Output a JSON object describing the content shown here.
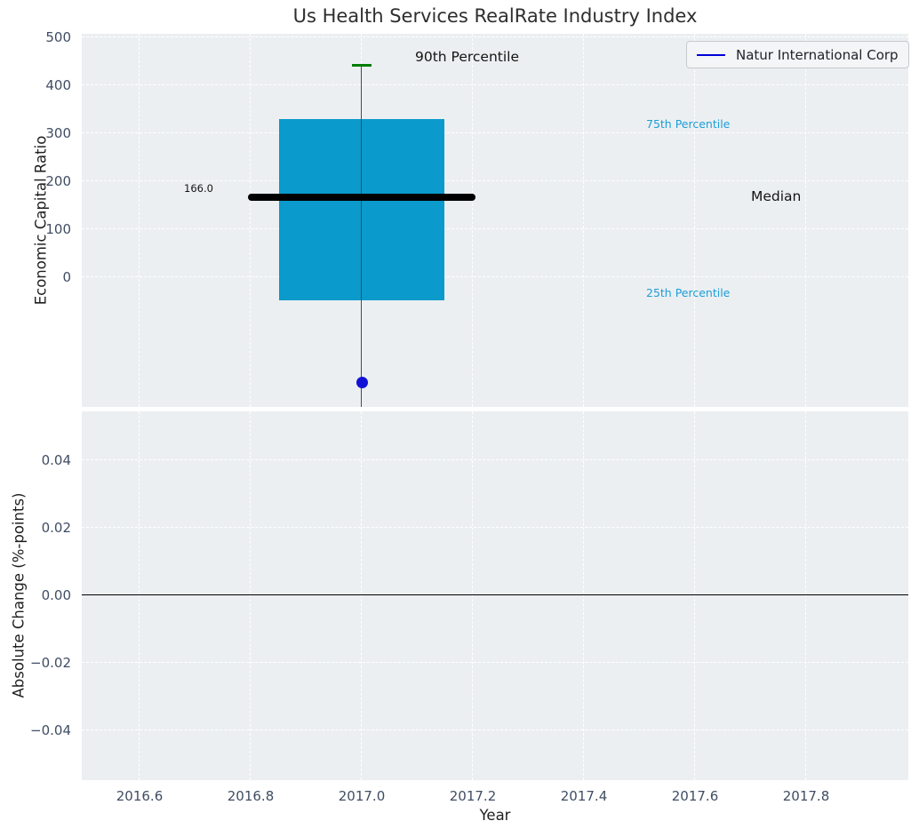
{
  "figure": {
    "background": "#ffffff",
    "plot_background": "#eceff1",
    "tick_color": "#3f4d63",
    "grid_color": "#ffffff"
  },
  "chart_data": [
    {
      "type": "boxplot",
      "title": "Us Health Services RealRate Industry Index",
      "ylabel": "Economic Capital Ratio",
      "xlim": [
        2016.496,
        2017.984
      ],
      "ylim": [
        -270,
        507
      ],
      "ytick_values": [
        500,
        400,
        300,
        200,
        100,
        0
      ],
      "ytick_labels": [
        "500",
        "400",
        "300",
        "200",
        "100",
        "0"
      ],
      "xtick_values": [
        2016.6,
        2016.8,
        2017.0,
        2017.2,
        2017.4,
        2017.6,
        2017.8
      ],
      "xtick_labels": [
        "2016.6",
        "2016.8",
        "2017.0",
        "2017.2",
        "2017.4",
        "2017.6",
        "2017.8"
      ],
      "grid": true,
      "grid_style": "dashed",
      "box": {
        "x": 2017.0,
        "p90": 442,
        "q3": 330,
        "median": 166.0,
        "q1": -48,
        "whisker_low_clipped": true,
        "box_half_width": 0.149,
        "median_half_width": 0.2055,
        "cap_half_width": 0.0176,
        "box_color": "#0a9acc",
        "median_color": "#000000",
        "cap_color": "#007d00",
        "whisker_color": "#4b4b4b"
      },
      "company_point": {
        "name": "Natur International Corp",
        "x": 2017.0,
        "value": -220,
        "color": "#1212d6"
      },
      "annotations": {
        "p90": "90th Percentile",
        "p75": "75th Percentile",
        "median": "Median",
        "p25": "25th Percentile",
        "median_value": "166.0"
      },
      "annotation_color_percentiles": "#1c9ed9",
      "legend": {
        "label": "Natur International Corp",
        "line_color": "#0000d8",
        "position": "upper right"
      }
    },
    {
      "type": "line",
      "ylabel": "Absolute Change (%-points)",
      "xlabel": "Year",
      "xlim": [
        2016.496,
        2017.984
      ],
      "ylim": [
        -0.0547,
        0.0545
      ],
      "ytick_values": [
        0.04,
        0.02,
        0.0,
        -0.02,
        -0.04
      ],
      "ytick_labels": [
        "0.04",
        "0.02",
        "0.00",
        "−0.02",
        "−0.04"
      ],
      "xtick_values": [
        2016.6,
        2016.8,
        2017.0,
        2017.2,
        2017.4,
        2017.6,
        2017.8
      ],
      "xtick_labels": [
        "2016.6",
        "2016.8",
        "2017.0",
        "2017.2",
        "2017.4",
        "2017.6",
        "2017.8"
      ],
      "grid": true,
      "grid_style": "dashed",
      "zero_line": 0.0,
      "zero_line_color": "#000000",
      "series": []
    }
  ]
}
